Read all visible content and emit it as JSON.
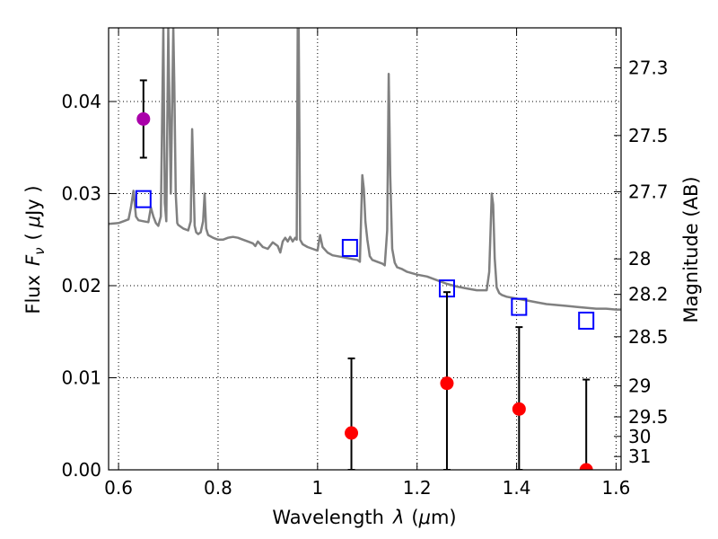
{
  "chart_data": {
    "type": "scatter",
    "xlabel_text": "Wavelength",
    "xlabel_symbol": "λ",
    "xlabel_unit_open": "(",
    "xlabel_unit_mu": "μ",
    "xlabel_unit_rest": "m)",
    "ylabel_text": "Flux",
    "ylabel_symbol": "F",
    "ylabel_sub": "ν",
    "ylabel_unit_open": "(",
    "ylabel_unit_mu": "μ",
    "ylabel_unit_rest": "Jy )",
    "y2label": "Magnitude (AB)",
    "xlim": [
      0.58,
      1.61
    ],
    "ylim": [
      0.0,
      0.048
    ],
    "grid": true,
    "x_ticks": [
      {
        "v": 0.6,
        "label": "0.6"
      },
      {
        "v": 0.8,
        "label": "0.8"
      },
      {
        "v": 1.0,
        "label": "1"
      },
      {
        "v": 1.2,
        "label": "1.2"
      },
      {
        "v": 1.4,
        "label": "1.4"
      },
      {
        "v": 1.6,
        "label": "1.6"
      }
    ],
    "y_ticks": [
      {
        "v": 0.0,
        "label": "0.00"
      },
      {
        "v": 0.01,
        "label": "0.01"
      },
      {
        "v": 0.02,
        "label": "0.02"
      },
      {
        "v": 0.03,
        "label": "0.03"
      },
      {
        "v": 0.04,
        "label": "0.04"
      }
    ],
    "mag_ticks": [
      {
        "v": 27.3,
        "label": "27.3"
      },
      {
        "v": 27.5,
        "label": "27.5"
      },
      {
        "v": 27.7,
        "label": "27.7"
      },
      {
        "v": 28.0,
        "label": "28"
      },
      {
        "v": 28.2,
        "label": "28.2"
      },
      {
        "v": 28.5,
        "label": "28.5"
      },
      {
        "v": 29.0,
        "label": "29"
      },
      {
        "v": 29.5,
        "label": "29.5"
      },
      {
        "v": 30.0,
        "label": "30"
      },
      {
        "v": 31.0,
        "label": "31"
      }
    ],
    "series": [
      {
        "kind": "line",
        "color": "#808080",
        "x": [
          0.58,
          0.6,
          0.61,
          0.62,
          0.625,
          0.63,
          0.635,
          0.64,
          0.65,
          0.66,
          0.665,
          0.67,
          0.675,
          0.68,
          0.685,
          0.69,
          0.693,
          0.696,
          0.7,
          0.705,
          0.71,
          0.712,
          0.715,
          0.718,
          0.72,
          0.73,
          0.74,
          0.745,
          0.748,
          0.75,
          0.753,
          0.756,
          0.76,
          0.765,
          0.77,
          0.773,
          0.776,
          0.78,
          0.79,
          0.8,
          0.81,
          0.82,
          0.83,
          0.84,
          0.85,
          0.86,
          0.87,
          0.875,
          0.88,
          0.89,
          0.9,
          0.91,
          0.92,
          0.925,
          0.93,
          0.935,
          0.94,
          0.945,
          0.95,
          0.955,
          0.958,
          0.96,
          0.962,
          0.965,
          0.97,
          0.98,
          0.99,
          1.0,
          1.005,
          1.01,
          1.02,
          1.03,
          1.04,
          1.05,
          1.06,
          1.07,
          1.08,
          1.085,
          1.09,
          1.093,
          1.096,
          1.1,
          1.105,
          1.11,
          1.12,
          1.13,
          1.135,
          1.14,
          1.143,
          1.146,
          1.15,
          1.155,
          1.16,
          1.17,
          1.18,
          1.2,
          1.22,
          1.24,
          1.26,
          1.28,
          1.3,
          1.32,
          1.34,
          1.345,
          1.35,
          1.353,
          1.356,
          1.36,
          1.365,
          1.37,
          1.38,
          1.4,
          1.42,
          1.44,
          1.46,
          1.48,
          1.5,
          1.52,
          1.54,
          1.56,
          1.58,
          1.6,
          1.61
        ],
        "y": [
          0.0267,
          0.0268,
          0.027,
          0.0272,
          0.0285,
          0.0303,
          0.0275,
          0.0271,
          0.027,
          0.0269,
          0.0285,
          0.0275,
          0.0268,
          0.0265,
          0.0275,
          0.048,
          0.029,
          0.027,
          0.048,
          0.03,
          0.048,
          0.042,
          0.03,
          0.0268,
          0.0266,
          0.0262,
          0.026,
          0.027,
          0.037,
          0.033,
          0.0265,
          0.0258,
          0.0256,
          0.0258,
          0.027,
          0.03,
          0.0262,
          0.0255,
          0.0252,
          0.025,
          0.025,
          0.0252,
          0.0253,
          0.0252,
          0.025,
          0.0248,
          0.0246,
          0.0243,
          0.0248,
          0.0242,
          0.024,
          0.0247,
          0.0243,
          0.0236,
          0.0248,
          0.0252,
          0.0248,
          0.0253,
          0.0248,
          0.0252,
          0.025,
          0.048,
          0.048,
          0.025,
          0.0245,
          0.0242,
          0.024,
          0.0238,
          0.0255,
          0.0242,
          0.0236,
          0.0233,
          0.0232,
          0.0231,
          0.023,
          0.0229,
          0.0228,
          0.0226,
          0.032,
          0.0305,
          0.027,
          0.025,
          0.0232,
          0.0228,
          0.0226,
          0.0224,
          0.0222,
          0.026,
          0.043,
          0.032,
          0.024,
          0.0225,
          0.022,
          0.0218,
          0.0215,
          0.0212,
          0.021,
          0.0206,
          0.0202,
          0.0199,
          0.0197,
          0.0195,
          0.0195,
          0.0215,
          0.03,
          0.0288,
          0.023,
          0.0198,
          0.0192,
          0.019,
          0.0188,
          0.0186,
          0.0184,
          0.0182,
          0.018,
          0.0179,
          0.0178,
          0.0177,
          0.0176,
          0.0175,
          0.0175,
          0.0174,
          0.0174
        ]
      },
      {
        "kind": "scatter",
        "marker": "square-open",
        "color": "#0000ff",
        "x": [
          0.65,
          1.065,
          1.26,
          1.405,
          1.54
        ],
        "y": [
          0.0294,
          0.0241,
          0.0197,
          0.0177,
          0.0162
        ]
      },
      {
        "kind": "errorbar",
        "marker": "circle",
        "color": "#ff0000",
        "x": [
          1.068,
          1.26,
          1.405,
          1.54
        ],
        "y": [
          0.004,
          0.0094,
          0.0066,
          0.0
        ],
        "yerr_low": [
          0.0045,
          0.0094,
          0.0066,
          0.0
        ],
        "yerr_high": [
          0.0081,
          0.0099,
          0.0089,
          0.0098
        ]
      },
      {
        "kind": "errorbar",
        "marker": "circle",
        "color": "#aa00aa",
        "x": [
          0.65
        ],
        "y": [
          0.0381
        ],
        "yerr_low": [
          0.0042
        ],
        "yerr_high": [
          0.0042
        ]
      }
    ]
  }
}
